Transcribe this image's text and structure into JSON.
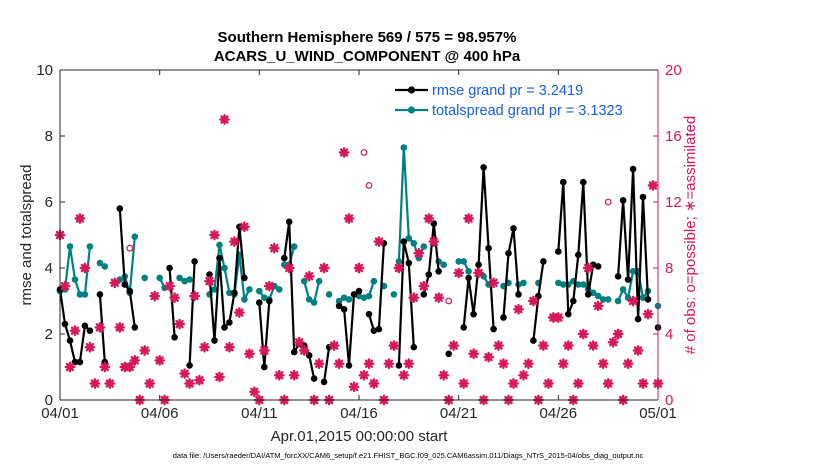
{
  "chart_data": {
    "type": "line",
    "title_line1": "Southern Hemisphere 569 / 575 = 98.957%",
    "title_line2": "ACARS_U_WIND_COMPONENT @ 400 hPa",
    "xlabel": "Apr.01,2015 00:00:00 start",
    "ylabel_left": "rmse and totalspread",
    "ylabel_right": "# of obs: o=possible; ∗=assimilated",
    "footer": "data file: /Users/raeder/DAI/ATM_forcXX/CAM6_setup/f.e21.FHIST_BGC.f09_025.CAM6assim.011/Diags_NTrS_2015-04/obs_diag_output.nc",
    "xlim": [
      0,
      30
    ],
    "ylim_left": [
      0,
      10
    ],
    "ylim_right": [
      0,
      20
    ],
    "x_ticks": [
      0,
      5,
      10,
      15,
      20,
      25,
      30
    ],
    "x_tick_labels": [
      "04/01",
      "04/06",
      "04/11",
      "04/16",
      "04/21",
      "04/26",
      "05/01"
    ],
    "y_ticks_left": [
      0,
      2,
      4,
      6,
      8,
      10
    ],
    "y_tick_labels_left": [
      "0",
      "2",
      "4",
      "6",
      "8",
      "10"
    ],
    "y_ticks_right": [
      0,
      4,
      8,
      12,
      16,
      20
    ],
    "y_tick_labels_right": [
      "0",
      "4",
      "8",
      "12",
      "16",
      "20"
    ],
    "colors": {
      "rmse": "#000000",
      "spread": "#00807f",
      "obs": "#d6185a",
      "legend_text": "#1a5fd6"
    },
    "legend": [
      {
        "key": "rmse",
        "label": "rmse grand pr = 3.2419"
      },
      {
        "key": "spread",
        "label": "totalspread grand pr = 3.1323"
      }
    ],
    "series": [
      {
        "name": "rmse",
        "segments": [
          [
            [
              0.0,
              3.35
            ],
            [
              0.25,
              2.3
            ],
            [
              0.5,
              1.8
            ],
            [
              0.75,
              1.15
            ],
            [
              1.0,
              1.15
            ],
            [
              1.25,
              2.25
            ],
            [
              1.5,
              2.1
            ]
          ],
          [
            [
              2.0,
              3.2
            ],
            [
              2.25,
              1.15
            ]
          ],
          [
            [
              3.0,
              5.8
            ],
            [
              3.25,
              3.5
            ],
            [
              3.5,
              3.3
            ],
            [
              3.75,
              2.2
            ]
          ],
          [
            [
              5.5,
              4.0
            ],
            [
              5.75,
              1.9
            ]
          ],
          [
            [
              6.5,
              1.05
            ],
            [
              6.75,
              4.2
            ]
          ],
          [
            [
              7.5,
              3.8
            ],
            [
              7.75,
              1.8
            ],
            [
              8.0,
              4.3
            ],
            [
              8.25,
              2.2
            ],
            [
              8.5,
              2.35
            ],
            [
              8.75,
              3.25
            ],
            [
              9.0,
              5.25
            ],
            [
              9.25,
              3.7
            ]
          ],
          [
            [
              10.0,
              2.95
            ],
            [
              10.25,
              1.0
            ],
            [
              10.5,
              3.0
            ]
          ],
          [
            [
              11.25,
              4.3
            ],
            [
              11.5,
              5.4
            ],
            [
              11.75,
              1.45
            ],
            [
              12.0,
              1.7
            ],
            [
              12.25,
              1.65
            ],
            [
              12.5,
              1.35
            ],
            [
              12.75,
              0.65
            ]
          ],
          [
            [
              13.25,
              0.55
            ],
            [
              13.5,
              1.6
            ]
          ],
          [
            [
              14.0,
              2.85
            ],
            [
              14.25,
              2.75
            ],
            [
              14.5,
              1.05
            ],
            [
              14.75,
              3.2
            ],
            [
              15.0,
              3.3
            ]
          ],
          [
            [
              15.5,
              2.6
            ],
            [
              15.75,
              2.1
            ],
            [
              16.0,
              2.15
            ],
            [
              16.25,
              4.75
            ]
          ],
          [
            [
              17.0,
              1.05
            ],
            [
              17.25,
              4.8
            ],
            [
              17.5,
              4.15
            ],
            [
              17.75,
              1.6
            ]
          ],
          [
            [
              18.25,
              3.2
            ],
            [
              18.5,
              3.8
            ],
            [
              18.75,
              5.35
            ],
            [
              19.0,
              3.9
            ]
          ],
          [
            [
              19.5,
              1.4
            ]
          ],
          [
            [
              20.25,
              2.2
            ],
            [
              20.5,
              3.7
            ],
            [
              20.75,
              2.6
            ],
            [
              21.0,
              4.1
            ],
            [
              21.25,
              7.05
            ],
            [
              21.5,
              4.6
            ],
            [
              21.75,
              2.15
            ]
          ],
          [
            [
              22.25,
              2.5
            ],
            [
              22.5,
              4.45
            ],
            [
              22.75,
              5.2
            ],
            [
              23.0,
              3.2
            ]
          ],
          [
            [
              23.75,
              1.8
            ],
            [
              24.0,
              3.15
            ],
            [
              24.25,
              4.2
            ]
          ],
          [
            [
              25.0,
              4.5
            ],
            [
              25.25,
              6.6
            ],
            [
              25.5,
              2.6
            ],
            [
              25.75,
              3.0
            ],
            [
              26.0,
              4.4
            ],
            [
              26.25,
              6.6
            ],
            [
              26.5,
              3.2
            ],
            [
              26.75,
              4.1
            ],
            [
              27.0,
              4.05
            ]
          ],
          [
            [
              28.0,
              3.75
            ],
            [
              28.25,
              6.05
            ],
            [
              28.5,
              3.65
            ],
            [
              28.75,
              7.0
            ],
            [
              29.0,
              2.45
            ],
            [
              29.25,
              6.15
            ],
            [
              29.5,
              3.05
            ]
          ],
          [
            [
              30.0,
              2.2
            ]
          ]
        ]
      },
      {
        "name": "totalspread",
        "segments": [
          [
            [
              0.0,
              3.3
            ],
            [
              0.25,
              3.35
            ],
            [
              0.5,
              4.65
            ],
            [
              0.75,
              3.65
            ],
            [
              1.0,
              3.2
            ],
            [
              1.25,
              3.2
            ],
            [
              1.5,
              4.65
            ]
          ],
          [
            [
              2.0,
              4.15
            ],
            [
              2.25,
              4.05
            ]
          ],
          [
            [
              3.0,
              3.65
            ],
            [
              3.25,
              3.75
            ],
            [
              3.5,
              3.25
            ],
            [
              3.75,
              4.95
            ]
          ],
          [
            [
              4.25,
              3.7
            ]
          ],
          [
            [
              5.0,
              3.7
            ],
            [
              5.25,
              3.4
            ]
          ],
          [
            [
              6.0,
              3.7
            ],
            [
              6.25,
              3.6
            ],
            [
              6.5,
              3.65
            ]
          ],
          [
            [
              7.5,
              3.2
            ],
            [
              7.75,
              3.35
            ],
            [
              8.0,
              4.7
            ],
            [
              8.25,
              4.0
            ],
            [
              8.5,
              3.25
            ],
            [
              8.75,
              3.2
            ],
            [
              9.0,
              4.4
            ],
            [
              9.25,
              3.05
            ],
            [
              9.5,
              3.35
            ]
          ],
          [
            [
              10.0,
              3.3
            ],
            [
              10.25,
              3.1
            ],
            [
              10.5,
              3.05
            ],
            [
              10.75,
              3.45
            ],
            [
              11.0,
              3.35
            ]
          ],
          [
            [
              11.25,
              4.1
            ],
            [
              11.5,
              4.1
            ],
            [
              11.75,
              4.65
            ]
          ],
          [
            [
              12.25,
              3.6
            ],
            [
              12.5,
              3.05
            ],
            [
              12.75,
              2.95
            ],
            [
              13.0,
              3.6
            ]
          ],
          [
            [
              13.5,
              3.2
            ]
          ],
          [
            [
              14.0,
              3.0
            ],
            [
              14.25,
              3.1
            ],
            [
              14.5,
              3.05
            ]
          ],
          [
            [
              15.0,
              3.15
            ],
            [
              15.25,
              3.1
            ],
            [
              15.5,
              3.15
            ],
            [
              15.75,
              3.6
            ]
          ],
          [
            [
              16.25,
              3.45
            ]
          ],
          [
            [
              16.75,
              3.2
            ]
          ],
          [
            [
              17.0,
              4.2
            ],
            [
              17.25,
              7.65
            ],
            [
              17.5,
              4.9
            ],
            [
              17.75,
              4.75
            ],
            [
              18.0,
              4.3
            ],
            [
              18.25,
              4.65
            ]
          ],
          [
            [
              19.0,
              4.2
            ],
            [
              19.25,
              4.1
            ]
          ],
          [
            [
              20.0,
              4.2
            ],
            [
              20.25,
              4.2
            ],
            [
              20.5,
              3.9
            ]
          ],
          [
            [
              21.0,
              3.85
            ],
            [
              21.25,
              3.75
            ],
            [
              21.5,
              3.5
            ]
          ],
          [
            [
              22.25,
              3.45
            ],
            [
              22.5,
              3.55
            ]
          ],
          [
            [
              23.0,
              3.5
            ],
            [
              23.25,
              3.55
            ]
          ],
          [
            [
              24.0,
              3.55
            ]
          ],
          [
            [
              25.0,
              3.55
            ],
            [
              25.25,
              3.5
            ],
            [
              25.5,
              3.5
            ],
            [
              25.75,
              3.6
            ],
            [
              26.0,
              3.5
            ],
            [
              26.25,
              3.5
            ],
            [
              26.5,
              3.35
            ],
            [
              26.75,
              3.25
            ],
            [
              27.0,
              3.15
            ],
            [
              27.25,
              3.05
            ],
            [
              27.5,
              3.05
            ]
          ],
          [
            [
              28.0,
              3.0
            ],
            [
              28.25,
              3.35
            ],
            [
              28.5,
              3.1
            ],
            [
              28.75,
              3.9
            ],
            [
              29.0,
              3.9
            ],
            [
              29.25,
              3.1
            ],
            [
              29.5,
              3.3
            ]
          ],
          [
            [
              30.0,
              2.85
            ]
          ]
        ]
      }
    ],
    "obs_assimilated": [
      [
        0.0,
        10
      ],
      [
        0.25,
        6.9
      ],
      [
        0.5,
        2
      ],
      [
        0.75,
        4.2
      ],
      [
        1.0,
        11
      ],
      [
        1.25,
        8
      ],
      [
        1.5,
        3.2
      ],
      [
        1.75,
        1
      ],
      [
        2.0,
        4.4
      ],
      [
        2.25,
        2
      ],
      [
        2.5,
        1
      ],
      [
        2.75,
        7.1
      ],
      [
        3.0,
        4.4
      ],
      [
        3.25,
        2
      ],
      [
        3.5,
        2
      ],
      [
        3.75,
        2.4
      ],
      [
        4.0,
        0
      ],
      [
        4.25,
        3
      ],
      [
        4.5,
        1
      ],
      [
        4.75,
        6.3
      ],
      [
        5.0,
        2.4
      ],
      [
        5.25,
        0
      ],
      [
        5.5,
        6.9
      ],
      [
        5.75,
        6.2
      ],
      [
        6.0,
        4.6
      ],
      [
        6.25,
        1.6
      ],
      [
        6.5,
        1
      ],
      [
        6.75,
        6.3
      ],
      [
        7.0,
        1.2
      ],
      [
        7.25,
        3.2
      ],
      [
        7.5,
        7.2
      ],
      [
        7.75,
        10
      ],
      [
        8.0,
        1.4
      ],
      [
        8.25,
        17
      ],
      [
        8.5,
        3.2
      ],
      [
        8.75,
        9.6
      ],
      [
        9.0,
        5.3
      ],
      [
        9.25,
        10.5
      ],
      [
        9.5,
        2.8
      ],
      [
        9.75,
        0.5
      ],
      [
        10.0,
        0
      ],
      [
        10.25,
        3
      ],
      [
        10.5,
        6.9
      ],
      [
        10.75,
        9.2
      ],
      [
        11.0,
        1.5
      ],
      [
        11.25,
        0
      ],
      [
        11.5,
        8
      ],
      [
        11.75,
        1.5
      ],
      [
        12.0,
        3.5
      ],
      [
        12.25,
        3
      ],
      [
        12.5,
        7.5
      ],
      [
        12.75,
        0
      ],
      [
        13.0,
        2.2
      ],
      [
        13.25,
        8
      ],
      [
        13.5,
        0
      ],
      [
        13.75,
        3.3
      ],
      [
        14.0,
        2.2
      ],
      [
        14.25,
        15
      ],
      [
        14.5,
        11
      ],
      [
        14.75,
        0.8
      ],
      [
        15.0,
        8
      ],
      [
        15.25,
        1.5
      ],
      [
        15.5,
        2.2
      ],
      [
        15.75,
        1
      ],
      [
        16.0,
        9.6
      ],
      [
        16.25,
        0
      ],
      [
        16.5,
        2.2
      ],
      [
        16.75,
        3.3
      ],
      [
        17.0,
        8
      ],
      [
        17.25,
        1.5
      ],
      [
        17.5,
        2.2
      ],
      [
        17.75,
        6.2
      ],
      [
        18.0,
        8.9
      ],
      [
        18.25,
        6.9
      ],
      [
        18.5,
        11
      ],
      [
        18.75,
        9.6
      ],
      [
        19.0,
        6.2
      ],
      [
        19.25,
        1.5
      ],
      [
        19.5,
        0
      ],
      [
        19.75,
        3.3
      ],
      [
        20.0,
        7.7
      ],
      [
        20.25,
        1
      ],
      [
        20.5,
        11
      ],
      [
        20.75,
        2.8
      ],
      [
        21.0,
        7.7
      ],
      [
        21.25,
        0
      ],
      [
        21.5,
        2.6
      ],
      [
        21.75,
        7.1
      ],
      [
        22.0,
        3.3
      ],
      [
        22.25,
        2.2
      ],
      [
        22.5,
        0
      ],
      [
        22.75,
        1
      ],
      [
        23.0,
        5.5
      ],
      [
        23.25,
        1.5
      ],
      [
        23.5,
        2.2
      ],
      [
        23.75,
        6
      ],
      [
        24.0,
        0
      ],
      [
        24.25,
        3.3
      ],
      [
        24.5,
        1
      ],
      [
        24.75,
        5
      ],
      [
        25.0,
        5
      ],
      [
        25.25,
        2.2
      ],
      [
        25.5,
        3.3
      ],
      [
        25.75,
        0
      ],
      [
        26.0,
        1
      ],
      [
        26.25,
        4
      ],
      [
        26.5,
        8
      ],
      [
        26.75,
        3.3
      ],
      [
        27.0,
        5.7
      ],
      [
        27.25,
        2.2
      ],
      [
        27.5,
        1
      ],
      [
        27.75,
        3.5
      ],
      [
        28.0,
        4
      ],
      [
        28.25,
        0
      ],
      [
        28.5,
        2.2
      ],
      [
        28.75,
        6
      ],
      [
        29.0,
        3
      ],
      [
        29.25,
        1
      ],
      [
        29.5,
        5.2
      ],
      [
        29.75,
        13
      ],
      [
        30.0,
        1
      ]
    ],
    "obs_possible_extra": [
      [
        3.5,
        9.2
      ],
      [
        15.25,
        15
      ],
      [
        15.5,
        13
      ],
      [
        19.5,
        6.0
      ],
      [
        27.5,
        12
      ]
    ]
  }
}
